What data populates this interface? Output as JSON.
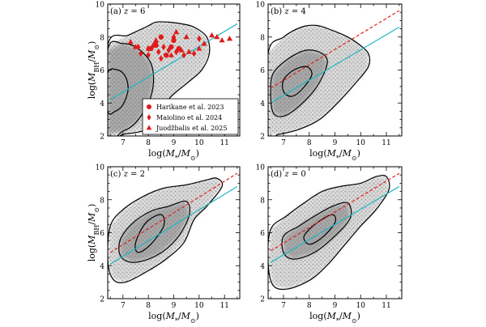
{
  "chart_data": [
    {
      "type": "scatter",
      "title": "(a) z = 6",
      "xlabel": "log(M*/M⊙)",
      "ylabel": "log(M_BH/M⊙)",
      "xlim": [
        6.4,
        11.6
      ],
      "ylim": [
        2,
        10
      ],
      "xticks": [
        7,
        8,
        9,
        10,
        11
      ],
      "yticks": [
        2,
        4,
        6,
        8,
        10
      ],
      "fit_cyan": {
        "x": [
          6.5,
          11.5
        ],
        "y": [
          4.2,
          8.8
        ]
      },
      "fit_red": null,
      "contours": [
        {
          "level": "outer",
          "points": [
            [
              6.4,
              7.5
            ],
            [
              7.2,
              8.1
            ],
            [
              7.9,
              8.6
            ],
            [
              8.3,
              8.9
            ],
            [
              8.8,
              8.9
            ],
            [
              9.3,
              8.8
            ],
            [
              9.8,
              8.6
            ],
            [
              10.3,
              8.0
            ],
            [
              10.4,
              7.0
            ],
            [
              10.1,
              6.0
            ],
            [
              9.6,
              5.3
            ],
            [
              8.9,
              4.4
            ],
            [
              8.4,
              3.4
            ],
            [
              7.9,
              2.4
            ],
            [
              7.0,
              2.1
            ],
            [
              6.4,
              2.0
            ]
          ]
        },
        {
          "level": "mid",
          "points": [
            [
              6.4,
              7.2
            ],
            [
              7.0,
              7.6
            ],
            [
              7.6,
              7.3
            ],
            [
              8.1,
              6.4
            ],
            [
              8.2,
              5.2
            ],
            [
              8.0,
              4.0
            ],
            [
              7.5,
              2.8
            ],
            [
              7.0,
              2.3
            ],
            [
              6.4,
              2.1
            ]
          ]
        },
        {
          "level": "inner",
          "points": [
            [
              6.4,
              5.8
            ],
            [
              6.8,
              6.0
            ],
            [
              7.1,
              5.6
            ],
            [
              7.2,
              4.8
            ],
            [
              7.0,
              3.9
            ],
            [
              6.7,
              3.5
            ],
            [
              6.4,
              3.5
            ]
          ]
        }
      ],
      "observations": [
        {
          "survey": "Harikane et al. 2023",
          "marker": "circle",
          "points": [
            [
              8.1,
              7.3
            ],
            [
              8.5,
              8.0
            ],
            [
              9.2,
              7.3
            ],
            [
              8.9,
              7.4
            ],
            [
              8.3,
              7.5
            ],
            [
              9.0,
              7.8
            ],
            [
              8.7,
              6.9
            ]
          ]
        },
        {
          "survey": "Maiolino et al. 2024",
          "marker": "diamond",
          "points": [
            [
              7.7,
              7.0
            ],
            [
              8.0,
              7.3
            ],
            [
              8.3,
              7.7
            ],
            [
              8.5,
              6.7
            ],
            [
              8.0,
              6.9
            ],
            [
              9.0,
              8.0
            ],
            [
              9.8,
              7.0
            ],
            [
              10.0,
              7.9
            ],
            [
              9.4,
              6.9
            ],
            [
              8.6,
              7.4
            ],
            [
              8.8,
              7.2
            ],
            [
              9.1,
              7.1
            ],
            [
              7.6,
              7.4
            ],
            [
              8.4,
              7.1
            ],
            [
              8.2,
              7.5
            ]
          ]
        },
        {
          "survey": "Juodzbalis et al. 2025",
          "marker": "triangle",
          "points": [
            [
              7.3,
              7.7
            ],
            [
              7.5,
              7.4
            ],
            [
              8.0,
              7.3
            ],
            [
              8.3,
              7.8
            ],
            [
              9.1,
              8.3
            ],
            [
              9.5,
              8.0
            ],
            [
              9.6,
              7.1
            ],
            [
              10.0,
              7.3
            ],
            [
              10.2,
              7.6
            ],
            [
              10.5,
              8.1
            ],
            [
              10.7,
              8.0
            ],
            [
              10.9,
              7.8
            ],
            [
              11.2,
              7.9
            ],
            [
              8.9,
              6.9
            ],
            [
              9.3,
              7.2
            ]
          ]
        }
      ],
      "legend": {
        "position": "bottom-right",
        "entries": [
          {
            "label": "Harikane et al. 2023",
            "marker": "circle"
          },
          {
            "label": "Maiolino et al. 2024",
            "marker": "diamond"
          },
          {
            "label": "Juodžbalis et al. 2025",
            "marker": "triangle"
          }
        ]
      }
    },
    {
      "type": "scatter",
      "title": "(b) z = 4",
      "xlabel": "log(M*/M⊙)",
      "ylabel": "",
      "xlim": [
        6.4,
        11.6
      ],
      "ylim": [
        2,
        10
      ],
      "xticks": [
        7,
        8,
        9,
        10,
        11
      ],
      "yticks": [
        2,
        4,
        6,
        8,
        10
      ],
      "fit_cyan": {
        "x": [
          6.5,
          11.5
        ],
        "y": [
          4.0,
          8.6
        ]
      },
      "fit_red": {
        "x": [
          6.5,
          11.5
        ],
        "y": [
          4.9,
          9.6
        ]
      },
      "contours": [
        {
          "level": "outer",
          "points": [
            [
              6.4,
              7.0
            ],
            [
              7.0,
              8.0
            ],
            [
              7.7,
              8.6
            ],
            [
              8.3,
              8.7
            ],
            [
              8.9,
              8.4
            ],
            [
              9.5,
              8.0
            ],
            [
              9.9,
              7.6
            ],
            [
              10.3,
              7.0
            ],
            [
              10.3,
              6.2
            ],
            [
              9.8,
              5.2
            ],
            [
              9.1,
              4.0
            ],
            [
              8.4,
              3.0
            ],
            [
              7.6,
              2.4
            ],
            [
              6.8,
              2.1
            ],
            [
              6.4,
              2.1
            ]
          ]
        },
        {
          "level": "mid",
          "points": [
            [
              6.6,
              5.8
            ],
            [
              7.2,
              6.7
            ],
            [
              7.9,
              7.2
            ],
            [
              8.5,
              7.0
            ],
            [
              8.7,
              6.4
            ],
            [
              8.3,
              5.0
            ],
            [
              7.6,
              3.8
            ],
            [
              7.0,
              3.2
            ],
            [
              6.6,
              3.4
            ],
            [
              6.5,
              4.6
            ]
          ]
        },
        {
          "level": "inner",
          "points": [
            [
              7.0,
              5.4
            ],
            [
              7.4,
              6.0
            ],
            [
              7.9,
              6.2
            ],
            [
              8.1,
              5.7
            ],
            [
              7.7,
              4.8
            ],
            [
              7.3,
              4.4
            ],
            [
              7.0,
              4.7
            ]
          ]
        }
      ],
      "observations": []
    },
    {
      "type": "scatter",
      "title": "(c) z = 2",
      "xlabel": "log(M*/M⊙)",
      "ylabel": "log(M_BH/M⊙)",
      "xlim": [
        6.4,
        11.6
      ],
      "ylim": [
        2,
        10
      ],
      "xticks": [
        7,
        8,
        9,
        10,
        11
      ],
      "yticks": [
        2,
        4,
        6,
        8,
        10
      ],
      "fit_cyan": {
        "x": [
          6.5,
          11.5
        ],
        "y": [
          4.1,
          8.8
        ]
      },
      "fit_red": {
        "x": [
          6.5,
          11.5
        ],
        "y": [
          4.8,
          9.6
        ]
      },
      "contours": [
        {
          "level": "outer",
          "points": [
            [
              6.5,
              6.4
            ],
            [
              7.0,
              7.4
            ],
            [
              7.8,
              8.2
            ],
            [
              8.6,
              8.7
            ],
            [
              9.5,
              8.9
            ],
            [
              10.3,
              9.2
            ],
            [
              10.7,
              9.3
            ],
            [
              10.9,
              8.8
            ],
            [
              10.3,
              7.6
            ],
            [
              9.8,
              6.8
            ],
            [
              9.4,
              5.4
            ],
            [
              8.7,
              4.4
            ],
            [
              8.0,
              3.7
            ],
            [
              7.1,
              3.0
            ],
            [
              6.6,
              3.2
            ],
            [
              6.4,
              4.4
            ]
          ]
        },
        {
          "level": "mid",
          "points": [
            [
              6.9,
              5.6
            ],
            [
              7.4,
              6.6
            ],
            [
              8.1,
              7.3
            ],
            [
              8.8,
              7.6
            ],
            [
              9.5,
              7.9
            ],
            [
              9.6,
              7.0
            ],
            [
              9.1,
              5.6
            ],
            [
              8.3,
              4.6
            ],
            [
              7.4,
              4.2
            ],
            [
              6.9,
              4.6
            ]
          ]
        },
        {
          "level": "inner",
          "points": [
            [
              7.5,
              5.4
            ],
            [
              7.9,
              6.6
            ],
            [
              8.5,
              7.1
            ],
            [
              8.6,
              6.4
            ],
            [
              8.1,
              5.3
            ],
            [
              7.6,
              4.8
            ]
          ]
        }
      ],
      "observations": []
    },
    {
      "type": "scatter",
      "title": "(d) z = 0",
      "xlabel": "log(M*/M⊙)",
      "ylabel": "",
      "xlim": [
        6.4,
        11.6
      ],
      "ylim": [
        2,
        10
      ],
      "xticks": [
        7,
        8,
        9,
        10,
        11
      ],
      "yticks": [
        2,
        4,
        6,
        8,
        10
      ],
      "fit_cyan": {
        "x": [
          6.5,
          11.5
        ],
        "y": [
          4.2,
          8.8
        ]
      },
      "fit_red": {
        "x": [
          6.5,
          11.5
        ],
        "y": [
          4.9,
          9.6
        ]
      },
      "contours": [
        {
          "level": "outer",
          "points": [
            [
              6.5,
              6.2
            ],
            [
              7.1,
              7.0
            ],
            [
              7.8,
              7.8
            ],
            [
              8.5,
              8.5
            ],
            [
              9.2,
              8.8
            ],
            [
              10.0,
              9.0
            ],
            [
              10.6,
              9.4
            ],
            [
              11.0,
              9.4
            ],
            [
              11.1,
              8.6
            ],
            [
              10.6,
              7.4
            ],
            [
              10.0,
              6.4
            ],
            [
              9.4,
              5.3
            ],
            [
              8.8,
              4.2
            ],
            [
              8.1,
              3.2
            ],
            [
              7.2,
              2.6
            ],
            [
              6.6,
              2.8
            ],
            [
              6.4,
              4.2
            ]
          ]
        },
        {
          "level": "mid",
          "points": [
            [
              7.0,
              5.8
            ],
            [
              7.6,
              6.4
            ],
            [
              8.2,
              7.0
            ],
            [
              8.9,
              7.6
            ],
            [
              9.5,
              7.8
            ],
            [
              9.6,
              6.9
            ],
            [
              9.0,
              5.8
            ],
            [
              8.2,
              4.8
            ],
            [
              7.4,
              4.4
            ],
            [
              7.0,
              4.8
            ]
          ]
        },
        {
          "level": "inner",
          "points": [
            [
              7.8,
              5.8
            ],
            [
              8.3,
              6.6
            ],
            [
              8.9,
              7.1
            ],
            [
              9.0,
              6.6
            ],
            [
              8.5,
              5.7
            ],
            [
              8.0,
              5.3
            ]
          ]
        }
      ],
      "observations": []
    }
  ]
}
